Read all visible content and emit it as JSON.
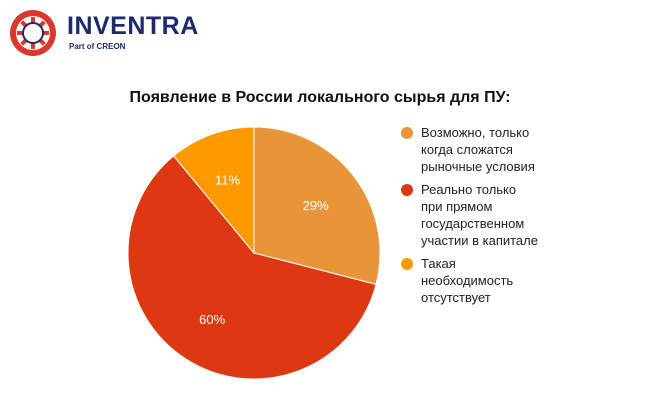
{
  "logo": {
    "name": "INVENTRA",
    "tagline": "Part of CREON",
    "colors": {
      "ring": "#d9392b",
      "text": "#1d2a6b"
    }
  },
  "chart_data": {
    "type": "pie",
    "title": "Появление в России локального сырья для ПУ:",
    "slices": [
      {
        "label": "Возможно, только\nкогда сложатся\nрыночные условия",
        "value": 29,
        "data_label": "29%",
        "color": "#e8953a"
      },
      {
        "label": "Реально только\nпри прямом\nгосударственном\nучастии в капитале",
        "value": 60,
        "data_label": "60%",
        "color": "#dc3912"
      },
      {
        "label": "Такая\nнеобходимость\nотсутствует",
        "value": 11,
        "data_label": "11%",
        "color": "#ff9900"
      }
    ],
    "start": "12 o'clock",
    "direction": "clockwise",
    "legend_position": "right"
  }
}
